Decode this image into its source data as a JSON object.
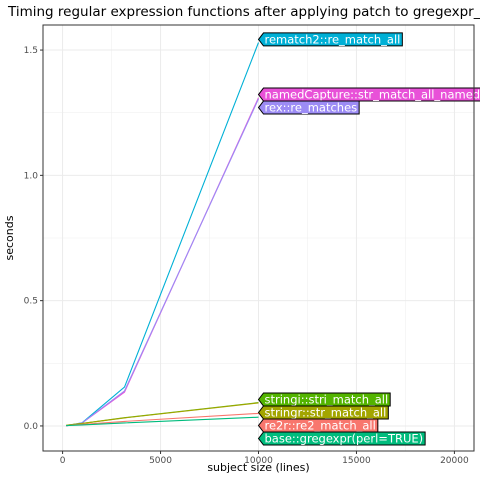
{
  "chart_data": {
    "type": "line",
    "title": "Timing regular expression functions after applying patch to gregexpr_perl",
    "xlabel": "subject size (lines)",
    "ylabel": "seconds",
    "xlim": [
      -1000,
      21000
    ],
    "ylim": [
      -0.1,
      1.6
    ],
    "xticks": [
      0,
      5000,
      10000,
      15000,
      20000
    ],
    "xtick_labels": [
      "0",
      "5000",
      "10000",
      "15000",
      "20000"
    ],
    "yticks": [
      0.0,
      0.5,
      1.0,
      1.5
    ],
    "ytick_labels": [
      "0.0",
      "0.5",
      "1.0",
      "1.5"
    ],
    "grid": true,
    "legend": "direct labels at line ends",
    "series": [
      {
        "name": "rematch2::re_match_all",
        "color": "#00b0d6",
        "x": [
          178,
          316,
          1000,
          3162,
          10000
        ],
        "y": [
          0.001,
          0.002,
          0.013,
          0.155,
          1.53
        ]
      },
      {
        "name": "namedCapture::str_match_all_named",
        "color": "#e851d8",
        "x": [
          178,
          316,
          1000,
          3162,
          10000
        ],
        "y": [
          0.001,
          0.002,
          0.012,
          0.135,
          1.31
        ]
      },
      {
        "name": "rex::re_matches",
        "color": "#9c8cf5",
        "x": [
          178,
          316,
          1000,
          3162,
          10000
        ],
        "y": [
          0.001,
          0.002,
          0.012,
          0.14,
          1.305
        ]
      },
      {
        "name": "stringi::stri_match_all",
        "color": "#53b400",
        "x": [
          178,
          316,
          1000,
          3162,
          10000
        ],
        "y": [
          0.002,
          0.004,
          0.01,
          0.033,
          0.093
        ]
      },
      {
        "name": "stringr::str_match_all",
        "color": "#a3a500",
        "x": [
          178,
          316,
          1000,
          3162,
          10000
        ],
        "y": [
          0.002,
          0.004,
          0.01,
          0.032,
          0.092
        ]
      },
      {
        "name": "re2r::re2_match_all",
        "color": "#f8766d",
        "x": [
          178,
          316,
          1000,
          3162,
          10000
        ],
        "y": [
          0.001,
          0.002,
          0.006,
          0.018,
          0.05
        ]
      },
      {
        "name": "base::gregexpr(perl=TRUE)",
        "color": "#00bc7d",
        "x": [
          178,
          316,
          1000,
          3162,
          10000
        ],
        "y": [
          0.001,
          0.002,
          0.004,
          0.012,
          0.035
        ]
      }
    ]
  }
}
